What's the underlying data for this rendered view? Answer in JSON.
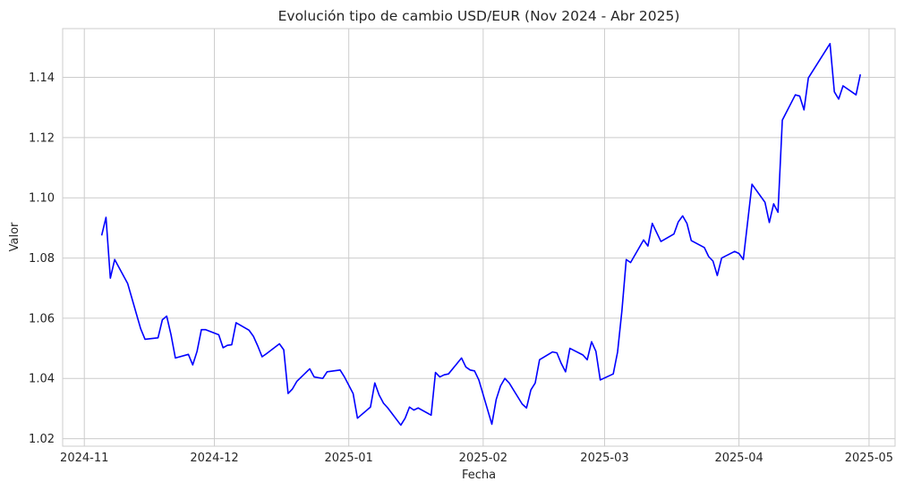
{
  "chart_data": {
    "type": "line",
    "title": "Evolución tipo de cambio USD/EUR (Nov 2024 - Abr 2025)",
    "xlabel": "Fecha",
    "ylabel": "Valor",
    "x_tick_labels": [
      "2024-11",
      "2024-12",
      "2025-01",
      "2025-02",
      "2025-03",
      "2025-04",
      "2025-05"
    ],
    "x_ticks": [
      "2024-11-01",
      "2024-12-01",
      "2025-01-01",
      "2025-02-01",
      "2025-03-01",
      "2025-04-01",
      "2025-05-01"
    ],
    "y_ticks": [
      1.02,
      1.04,
      1.06,
      1.08,
      1.1,
      1.12,
      1.14
    ],
    "y_tick_labels": [
      "1.02",
      "1.04",
      "1.06",
      "1.08",
      "1.10",
      "1.12",
      "1.14"
    ],
    "xlim": [
      "2024-10-27",
      "2025-05-07"
    ],
    "ylim": [
      1.0175,
      1.1562
    ],
    "grid": true,
    "line_color": "#0000ff",
    "series": [
      {
        "name": "",
        "points": [
          [
            "2024-11-05",
            1.0875
          ],
          [
            "2024-11-06",
            1.0935
          ],
          [
            "2024-11-07",
            1.0733
          ],
          [
            "2024-11-08",
            1.0795
          ],
          [
            "2024-11-11",
            1.0715
          ],
          [
            "2024-11-12",
            1.0665
          ],
          [
            "2024-11-13",
            1.0615
          ],
          [
            "2024-11-14",
            1.0565
          ],
          [
            "2024-11-15",
            1.053
          ],
          [
            "2024-11-18",
            1.0535
          ],
          [
            "2024-11-19",
            1.0595
          ],
          [
            "2024-11-20",
            1.0607
          ],
          [
            "2024-11-21",
            1.0545
          ],
          [
            "2024-11-22",
            1.0468
          ],
          [
            "2024-11-25",
            1.048
          ],
          [
            "2024-11-26",
            1.0445
          ],
          [
            "2024-11-27",
            1.049
          ],
          [
            "2024-11-28",
            1.0562
          ],
          [
            "2024-11-29",
            1.0562
          ],
          [
            "2024-12-02",
            1.0545
          ],
          [
            "2024-12-03",
            1.0502
          ],
          [
            "2024-12-04",
            1.051
          ],
          [
            "2024-12-05",
            1.0512
          ],
          [
            "2024-12-06",
            1.0585
          ],
          [
            "2024-12-09",
            1.056
          ],
          [
            "2024-12-10",
            1.054
          ],
          [
            "2024-12-11",
            1.0508
          ],
          [
            "2024-12-12",
            1.0472
          ],
          [
            "2024-12-13",
            1.0482
          ],
          [
            "2024-12-16",
            1.0515
          ],
          [
            "2024-12-17",
            1.0495
          ],
          [
            "2024-12-18",
            1.035
          ],
          [
            "2024-12-19",
            1.0365
          ],
          [
            "2024-12-20",
            1.039
          ],
          [
            "2024-12-23",
            1.0432
          ],
          [
            "2024-12-24",
            1.0405
          ],
          [
            "2024-12-26",
            1.04
          ],
          [
            "2024-12-27",
            1.0422
          ],
          [
            "2024-12-30",
            1.0428
          ],
          [
            "2024-12-31",
            1.0405
          ],
          [
            "2025-01-02",
            1.035
          ],
          [
            "2025-01-03",
            1.0268
          ],
          [
            "2025-01-06",
            1.0305
          ],
          [
            "2025-01-07",
            1.0385
          ],
          [
            "2025-01-08",
            1.0345
          ],
          [
            "2025-01-09",
            1.0318
          ],
          [
            "2025-01-10",
            1.0302
          ],
          [
            "2025-01-13",
            1.0245
          ],
          [
            "2025-01-14",
            1.0268
          ],
          [
            "2025-01-15",
            1.0305
          ],
          [
            "2025-01-16",
            1.0295
          ],
          [
            "2025-01-17",
            1.0302
          ],
          [
            "2025-01-20",
            1.0278
          ],
          [
            "2025-01-21",
            1.042
          ],
          [
            "2025-01-22",
            1.0405
          ],
          [
            "2025-01-23",
            1.0412
          ],
          [
            "2025-01-24",
            1.0415
          ],
          [
            "2025-01-27",
            1.0468
          ],
          [
            "2025-01-28",
            1.0438
          ],
          [
            "2025-01-29",
            1.0428
          ],
          [
            "2025-01-30",
            1.0425
          ],
          [
            "2025-01-31",
            1.0395
          ],
          [
            "2025-02-03",
            1.0248
          ],
          [
            "2025-02-04",
            1.033
          ],
          [
            "2025-02-05",
            1.0375
          ],
          [
            "2025-02-06",
            1.04
          ],
          [
            "2025-02-07",
            1.0385
          ],
          [
            "2025-02-10",
            1.0315
          ],
          [
            "2025-02-11",
            1.0302
          ],
          [
            "2025-02-12",
            1.0362
          ],
          [
            "2025-02-13",
            1.0385
          ],
          [
            "2025-02-14",
            1.0462
          ],
          [
            "2025-02-17",
            1.0488
          ],
          [
            "2025-02-18",
            1.0485
          ],
          [
            "2025-02-19",
            1.045
          ],
          [
            "2025-02-20",
            1.0422
          ],
          [
            "2025-02-21",
            1.05
          ],
          [
            "2025-02-24",
            1.0478
          ],
          [
            "2025-02-25",
            1.0462
          ],
          [
            "2025-02-26",
            1.0522
          ],
          [
            "2025-02-27",
            1.049
          ],
          [
            "2025-02-28",
            1.0395
          ],
          [
            "2025-03-03",
            1.0415
          ],
          [
            "2025-03-04",
            1.0488
          ],
          [
            "2025-03-05",
            1.0625
          ],
          [
            "2025-03-06",
            1.0795
          ],
          [
            "2025-03-07",
            1.0785
          ],
          [
            "2025-03-10",
            1.086
          ],
          [
            "2025-03-11",
            1.084
          ],
          [
            "2025-03-12",
            1.0915
          ],
          [
            "2025-03-13",
            1.0885
          ],
          [
            "2025-03-14",
            1.0855
          ],
          [
            "2025-03-17",
            1.088
          ],
          [
            "2025-03-18",
            1.092
          ],
          [
            "2025-03-19",
            1.094
          ],
          [
            "2025-03-20",
            1.0915
          ],
          [
            "2025-03-21",
            1.0858
          ],
          [
            "2025-03-24",
            1.0835
          ],
          [
            "2025-03-25",
            1.0805
          ],
          [
            "2025-03-26",
            1.079
          ],
          [
            "2025-03-27",
            1.0742
          ],
          [
            "2025-03-28",
            1.08
          ],
          [
            "2025-03-31",
            1.0822
          ],
          [
            "2025-04-01",
            1.0815
          ],
          [
            "2025-04-02",
            1.0795
          ],
          [
            "2025-04-04",
            1.1045
          ],
          [
            "2025-04-07",
            1.0985
          ],
          [
            "2025-04-08",
            1.0918
          ],
          [
            "2025-04-09",
            1.098
          ],
          [
            "2025-04-10",
            1.0952
          ],
          [
            "2025-04-11",
            1.1258
          ],
          [
            "2025-04-14",
            1.1342
          ],
          [
            "2025-04-15",
            1.1338
          ],
          [
            "2025-04-16",
            1.1292
          ],
          [
            "2025-04-17",
            1.1398
          ],
          [
            "2025-04-22",
            1.1512
          ],
          [
            "2025-04-23",
            1.1352
          ],
          [
            "2025-04-24",
            1.1328
          ],
          [
            "2025-04-25",
            1.1372
          ],
          [
            "2025-04-28",
            1.1342
          ],
          [
            "2025-04-29",
            1.141
          ]
        ]
      }
    ]
  }
}
